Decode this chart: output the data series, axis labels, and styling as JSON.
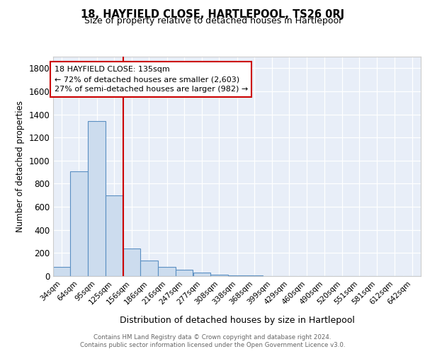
{
  "title": "18, HAYFIELD CLOSE, HARTLEPOOL, TS26 0RJ",
  "subtitle": "Size of property relative to detached houses in Hartlepool",
  "xlabel": "Distribution of detached houses by size in Hartlepool",
  "ylabel": "Number of detached properties",
  "bar_color": "#ccdcee",
  "bar_edge_color": "#5a8fc2",
  "background_color": "#e8eef8",
  "grid_color": "#ffffff",
  "bin_left": [
    19,
    49,
    80,
    110,
    141,
    171,
    202,
    232,
    263,
    293,
    324,
    354,
    385,
    415,
    446,
    476,
    507,
    537,
    568,
    598,
    629
  ],
  "bin_width": 30,
  "bin_labels": [
    "34sqm",
    "64sqm",
    "95sqm",
    "125sqm",
    "156sqm",
    "186sqm",
    "216sqm",
    "247sqm",
    "277sqm",
    "308sqm",
    "338sqm",
    "368sqm",
    "399sqm",
    "429sqm",
    "460sqm",
    "490sqm",
    "520sqm",
    "551sqm",
    "581sqm",
    "612sqm",
    "642sqm"
  ],
  "bar_heights": [
    80,
    910,
    1340,
    700,
    240,
    135,
    80,
    55,
    30,
    15,
    7,
    5,
    3,
    2,
    2,
    1,
    0,
    0,
    0,
    0,
    0
  ],
  "vline_x": 141,
  "vline_color": "#cc0000",
  "annotation_line1": "18 HAYFIELD CLOSE: 135sqm",
  "annotation_line2": "← 72% of detached houses are smaller (2,603)",
  "annotation_line3": "27% of semi-detached houses are larger (982) →",
  "annotation_box_color": "#ffffff",
  "annotation_box_edge": "#cc0000",
  "ylim": [
    0,
    1900
  ],
  "yticks": [
    0,
    200,
    400,
    600,
    800,
    1000,
    1200,
    1400,
    1600,
    1800
  ],
  "footer_line1": "Contains HM Land Registry data © Crown copyright and database right 2024.",
  "footer_line2": "Contains public sector information licensed under the Open Government Licence v3.0."
}
